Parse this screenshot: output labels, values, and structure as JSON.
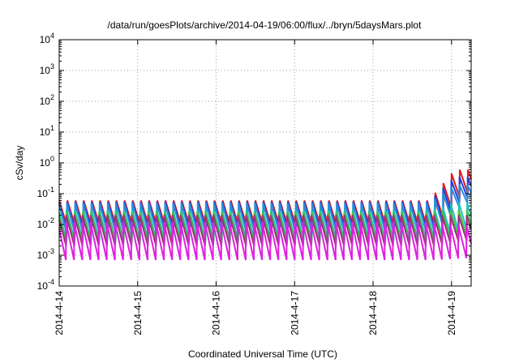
{
  "chart_data": {
    "type": "line",
    "title": "/data/run/goesPlots/archive/2014-04-19/06:00/flux/../bryn/5daysMars.plot",
    "xlabel": "Coordinated Universal Time (UTC)",
    "ylabel": "cSv/day",
    "yscale": "log",
    "ylim_exp": [
      -4,
      4
    ],
    "ytick_labels": [
      {
        "base": "10",
        "exp": "-4"
      },
      {
        "base": "10",
        "exp": "-3"
      },
      {
        "base": "10",
        "exp": "-2"
      },
      {
        "base": "10",
        "exp": "-1"
      },
      {
        "base": "10",
        "exp": "0"
      },
      {
        "base": "10",
        "exp": "1"
      },
      {
        "base": "10",
        "exp": "2"
      },
      {
        "base": "10",
        "exp": "3"
      },
      {
        "base": "10",
        "exp": "4"
      }
    ],
    "x_range_days": [
      "2014-04-14",
      "2014-04-19 06:00"
    ],
    "xtick_labels": [
      "2014-4-14",
      "2014-4-15",
      "2014-4-16",
      "2014-4-17",
      "2014-4-18",
      "2014-4-19"
    ],
    "grid": true,
    "sawtooth_period_hours": 2.5,
    "series": [
      {
        "color": "#e41a1c",
        "low_start": 0.008,
        "high_start": 0.06,
        "low_end": 0.1,
        "high_end": 0.6
      },
      {
        "color": "#1f3fdf",
        "low_start": 0.006,
        "high_start": 0.055,
        "low_end": 0.07,
        "high_end": 0.35
      },
      {
        "color": "#2a8fd6",
        "low_start": 0.005,
        "high_start": 0.05,
        "low_end": 0.05,
        "high_end": 0.2
      },
      {
        "color": "#20c0c0",
        "low_start": 0.003,
        "high_start": 0.03,
        "low_end": 0.006,
        "high_end": 0.05
      },
      {
        "color": "#3fc040",
        "low_start": 0.0025,
        "high_start": 0.025,
        "low_end": 0.004,
        "high_end": 0.03
      },
      {
        "color": "#a03080",
        "low_start": 0.002,
        "high_start": 0.02,
        "low_end": 0.003,
        "high_end": 0.02
      },
      {
        "color": "#e020e0",
        "low_start": 0.0007,
        "high_start": 0.012,
        "low_end": 0.0008,
        "high_end": 0.01
      }
    ],
    "event_start": "2014-04-18 17:00",
    "event_peak_growth_hours": 8
  }
}
